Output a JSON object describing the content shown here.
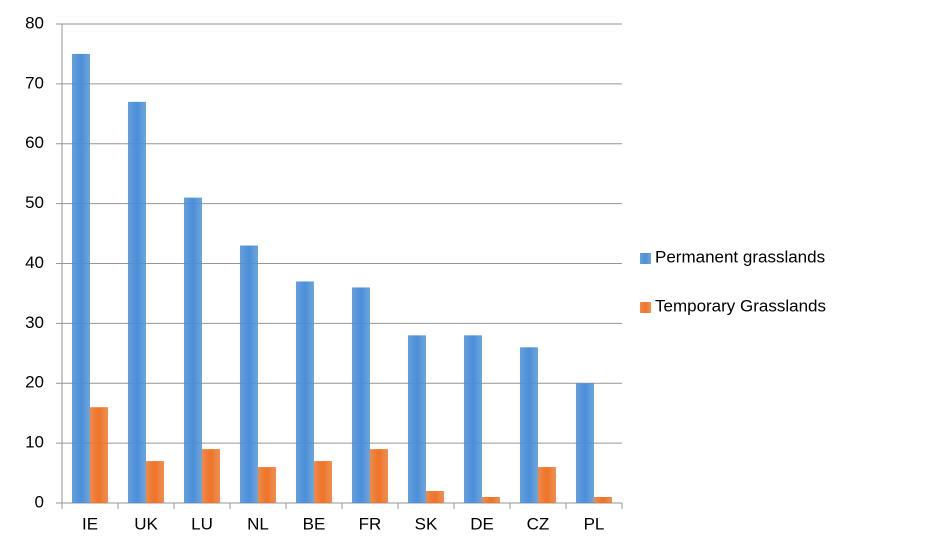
{
  "chart_data": {
    "type": "bar",
    "categories": [
      "IE",
      "UK",
      "LU",
      "NL",
      "BE",
      "FR",
      "SK",
      "DE",
      "CZ",
      "PL"
    ],
    "series": [
      {
        "name": "Permanent grasslands",
        "color": "#4a8fd6",
        "values": [
          75,
          67,
          51,
          43,
          37,
          36,
          28,
          28,
          26,
          20
        ]
      },
      {
        "name": "Temporary Grasslands",
        "color": "#ed7428",
        "values": [
          16,
          7,
          9,
          6,
          7,
          9,
          2,
          1,
          6,
          1
        ]
      }
    ],
    "ylim": [
      0,
      80
    ],
    "yticks": [
      0,
      10,
      20,
      30,
      40,
      50,
      60,
      70,
      80
    ],
    "grid": true,
    "legend": "right"
  }
}
